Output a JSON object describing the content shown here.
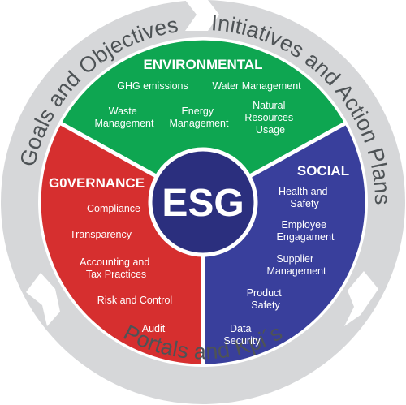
{
  "colors": {
    "environmental": "#0ea651",
    "governance": "#d62f2f",
    "social": "#393f9c",
    "center": "#2b2f7e",
    "ring": "#d6d7d9",
    "ring_text": "#4e5356",
    "white": "#ffffff"
  },
  "center": {
    "label": "ESG"
  },
  "ring": {
    "top_left": "Goals and Objectives",
    "top_right": "Initiatives and Action Plans",
    "bottom": "Portals and Kpi´s"
  },
  "environmental": {
    "title": "ENVIRONMENTAL",
    "items": [
      {
        "lines": [
          "GHG emissions"
        ]
      },
      {
        "lines": [
          "Water Management"
        ]
      },
      {
        "lines": [
          "Waste",
          "Management"
        ]
      },
      {
        "lines": [
          "Energy",
          "Management"
        ]
      },
      {
        "lines": [
          "Natural",
          "Resources",
          "Usage"
        ]
      }
    ]
  },
  "governance": {
    "title": "G0VERNANCE",
    "items": [
      {
        "lines": [
          "Compliance"
        ]
      },
      {
        "lines": [
          "Transparency"
        ]
      },
      {
        "lines": [
          "Accounting and",
          "Tax Practices"
        ]
      },
      {
        "lines": [
          "Risk and Control"
        ]
      },
      {
        "lines": [
          "Audit"
        ]
      }
    ]
  },
  "social": {
    "title": "SOCIAL",
    "items": [
      {
        "lines": [
          "Health and",
          "Safety"
        ]
      },
      {
        "lines": [
          "Employee",
          "Engagament"
        ]
      },
      {
        "lines": [
          "Supplier",
          "Management"
        ]
      },
      {
        "lines": [
          "Product",
          "Safety"
        ]
      },
      {
        "lines": [
          "Data",
          "Security"
        ]
      }
    ]
  }
}
